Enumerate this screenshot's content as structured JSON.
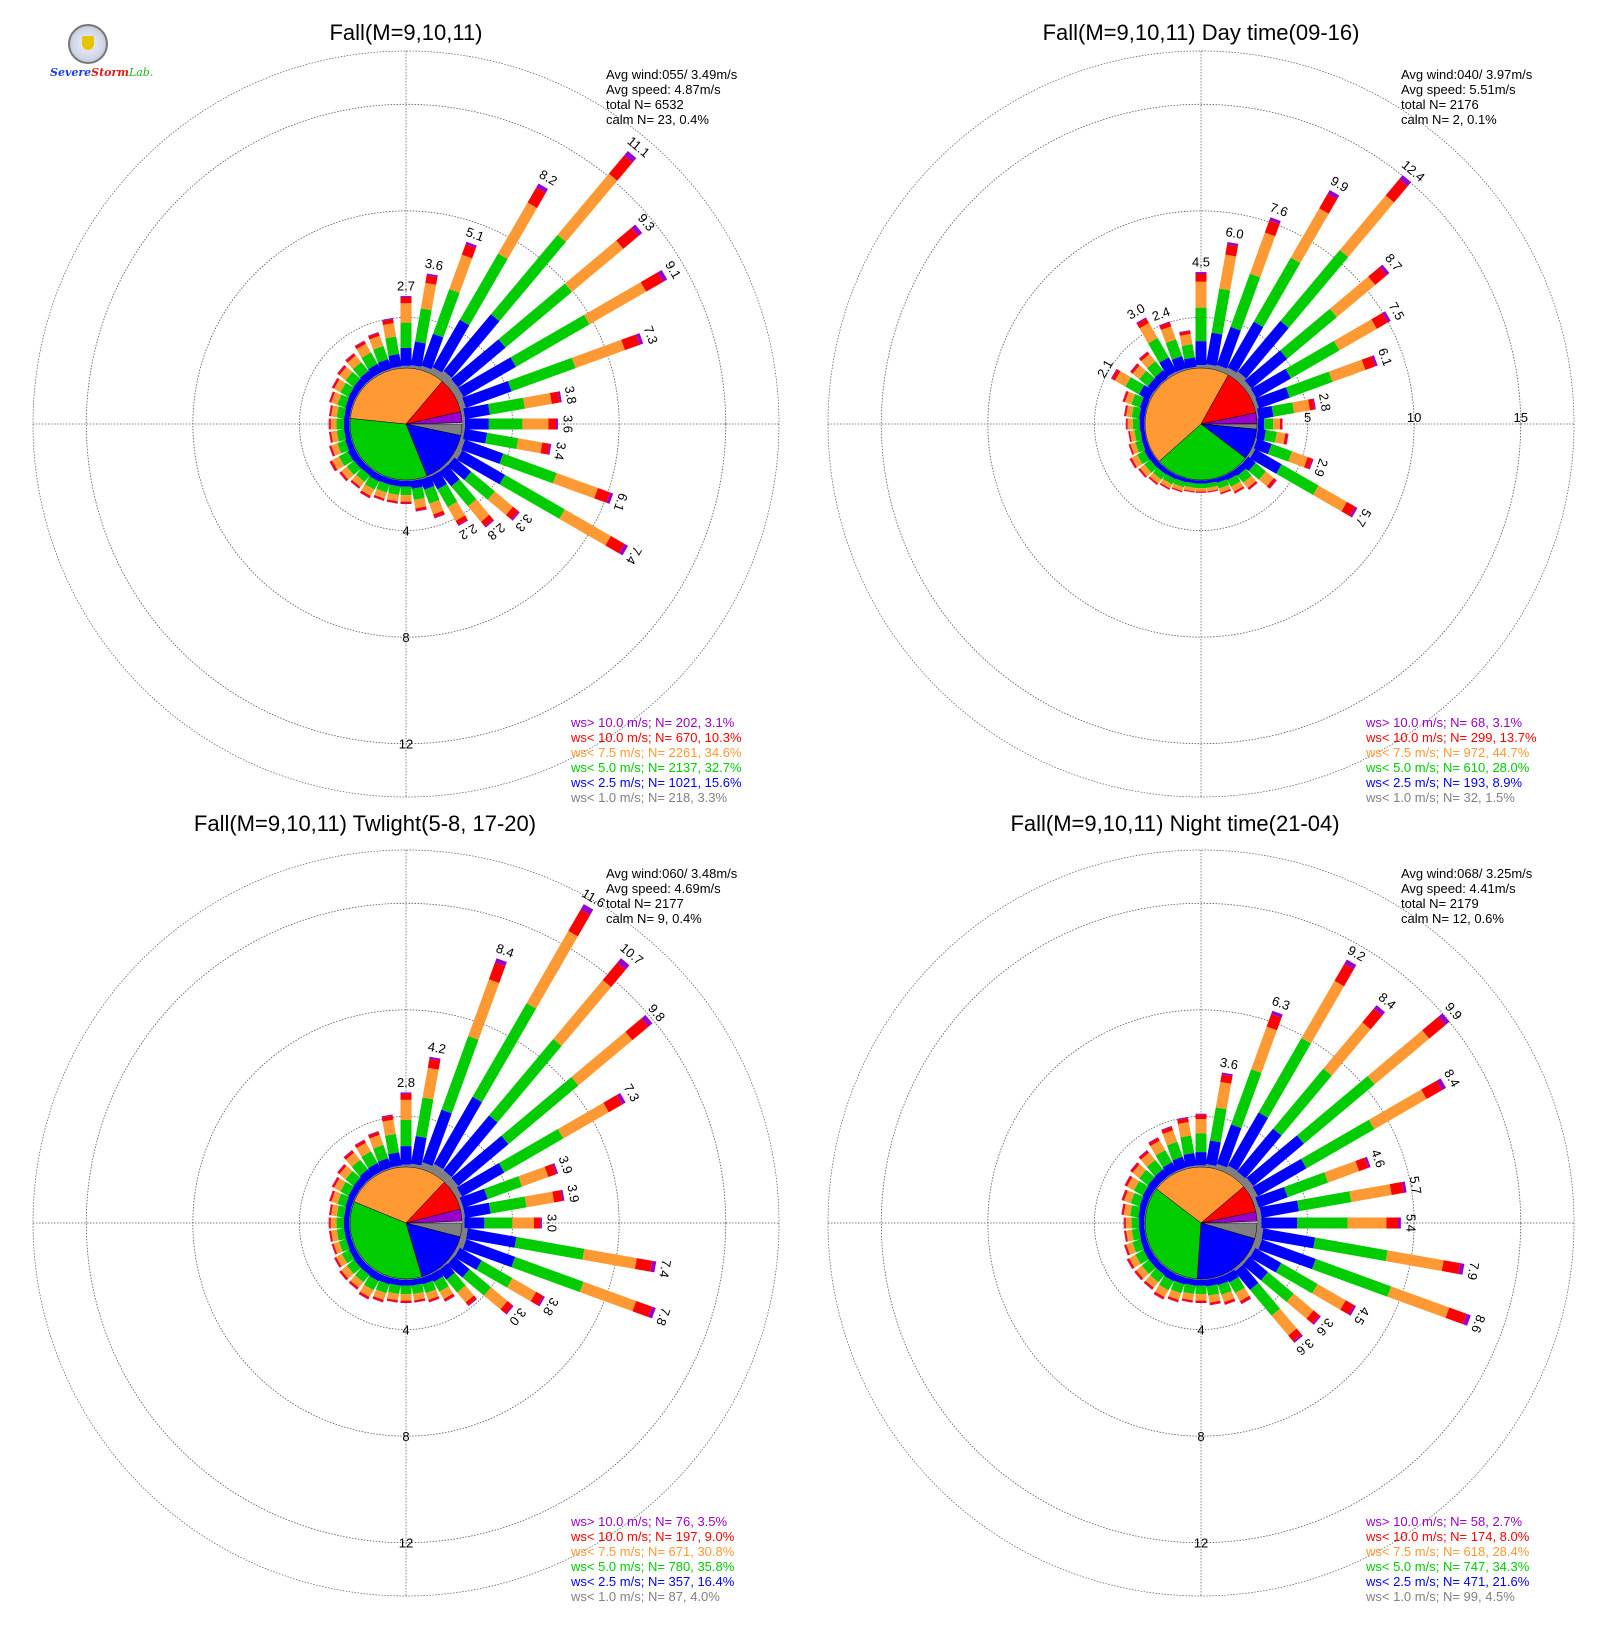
{
  "logo": {
    "word1": "Severe",
    "word2": "Storm",
    "word3": "Lab."
  },
  "colors": {
    "gray": "#808080",
    "blue": "#0000ff",
    "green": "#00cc00",
    "orange": "#ff9933",
    "red": "#ff0000",
    "purple": "#9900cc"
  },
  "legend_labels": [
    "ws> 10.0 m/s; N=",
    "ws< 10.0 m/s; N=",
    "ws<  7.5 m/s; N=",
    "ws<  5.0 m/s; N=",
    "ws<  2.5 m/s; N=",
    "ws<  1.0 m/s; N="
  ],
  "chart_data": [
    {
      "type": "windrose",
      "title": "Fall(M=9,10,11)",
      "stats": [
        "Avg wind:055/ 3.49m/s",
        "Avg speed: 4.87m/s",
        "total N=      6532",
        "calm N=     23,   0.4%"
      ],
      "rings": [
        4,
        8,
        12
      ],
      "ring_labels": [
        "4",
        "8",
        "12"
      ],
      "ring_label_side": "bottom",
      "rmax": 14,
      "pie_percent": [
        3.3,
        15.6,
        32.7,
        34.6,
        10.3,
        3.1
      ],
      "legend_values": [
        "  202,  3.1%",
        "  670, 10.3%",
        " 2261, 34.6%",
        " 2137, 32.7%",
        " 1021, 15.6%",
        "  218,  3.3%"
      ],
      "directions": [
        0,
        10,
        20,
        30,
        40,
        50,
        60,
        70,
        80,
        90,
        100,
        110,
        120,
        130,
        140,
        150,
        160,
        170,
        180,
        190,
        200,
        210,
        220,
        230,
        240,
        250,
        260,
        270,
        280,
        290,
        300,
        310,
        320,
        330,
        340,
        350
      ],
      "totals": [
        2.7,
        3.6,
        5.1,
        8.2,
        11.1,
        9.3,
        9.1,
        7.3,
        3.8,
        3.6,
        3.4,
        6.1,
        7.4,
        3.3,
        2.8,
        2.2,
        1.6,
        1.2,
        0.9,
        0.9,
        0.9,
        1.0,
        0.9,
        1.0,
        1.1,
        0.9,
        0.8,
        0.8,
        0.8,
        0.9,
        1.0,
        1.1,
        1.2,
        1.4,
        1.5,
        1.9
      ],
      "labels": [
        "2.7",
        "3.6",
        "5.1",
        "8.2",
        "11.1",
        "9.3",
        "9.1",
        "7.3",
        "3.8",
        "3.6",
        "3.4",
        "6.1",
        "7.4",
        "3.3",
        "2.8",
        "2.2",
        "",
        "",
        "",
        "",
        "",
        "",
        "",
        "",
        "",
        "",
        "",
        "",
        "",
        "",
        "",
        "",
        "",
        "",
        "",
        ""
      ]
    },
    {
      "type": "windrose",
      "title": "Fall(M=9,10,11) Day time(09-16)",
      "stats": [
        "Avg wind:040/ 3.97m/s",
        "Avg speed: 5.51m/s",
        "total N=      2176",
        "calm N=       2,   0.1%"
      ],
      "rings": [
        5,
        10,
        15
      ],
      "ring_labels": [
        "5",
        "10",
        "15"
      ],
      "ring_label_side": "right",
      "rmax": 17.5,
      "pie_percent": [
        1.5,
        8.9,
        28.0,
        44.7,
        13.7,
        3.1
      ],
      "legend_values": [
        "   68,  3.1%",
        "  299, 13.7%",
        "  972, 44.7%",
        "  610, 28.0%",
        "  193,  8.9%",
        "   32,  1.5%"
      ],
      "directions": [
        0,
        10,
        20,
        30,
        40,
        50,
        60,
        70,
        80,
        90,
        100,
        110,
        120,
        130,
        140,
        150,
        160,
        170,
        180,
        190,
        200,
        210,
        220,
        230,
        240,
        250,
        260,
        270,
        280,
        290,
        300,
        310,
        320,
        330,
        340,
        350
      ],
      "totals": [
        4.5,
        6.0,
        7.6,
        9.9,
        12.4,
        8.7,
        7.5,
        6.1,
        2.8,
        1.2,
        1.5,
        2.9,
        5.7,
        1.8,
        1.2,
        1.0,
        0.8,
        0.6,
        0.6,
        0.6,
        0.7,
        0.8,
        0.9,
        1.0,
        1.1,
        0.9,
        0.8,
        0.9,
        1.0,
        1.2,
        2.1,
        1.5,
        1.6,
        3.0,
        2.4,
        1.8
      ],
      "labels": [
        "4.5",
        "6.0",
        "7.6",
        "9.9",
        "12.4",
        "8.7",
        "7.5",
        "6.1",
        "2.8",
        "",
        "",
        "2.9",
        "5.7",
        "",
        "",
        "",
        "",
        "",
        "",
        "",
        "",
        "",
        "",
        "",
        "",
        "",
        "",
        "",
        "",
        "",
        "2.1",
        "",
        "",
        "3.0",
        "2.4",
        ""
      ]
    },
    {
      "type": "windrose",
      "title": "Fall(M=9,10,11) Twlight(5-8, 17-20)",
      "stats": [
        "Avg wind:060/ 3.48m/s",
        "Avg speed: 4.69m/s",
        "total N=      2177",
        "calm N=      9,   0.4%"
      ],
      "rings": [
        4,
        8,
        12
      ],
      "ring_labels": [
        "4",
        "8",
        "12"
      ],
      "ring_label_side": "bottom",
      "rmax": 14,
      "pie_percent": [
        4.0,
        16.4,
        35.8,
        30.8,
        9.0,
        3.5
      ],
      "legend_values": [
        "   76,  3.5%",
        "  197,  9.0%",
        "  671, 30.8%",
        "  780, 35.8%",
        "  357, 16.4%",
        "   87,  4.0%"
      ],
      "directions": [
        0,
        10,
        20,
        30,
        40,
        50,
        60,
        70,
        80,
        90,
        100,
        110,
        120,
        130,
        140,
        150,
        160,
        170,
        180,
        190,
        200,
        210,
        220,
        230,
        240,
        250,
        260,
        270,
        280,
        290,
        300,
        310,
        320,
        330,
        340,
        350
      ],
      "totals": [
        2.8,
        4.2,
        8.4,
        11.6,
        10.7,
        9.8,
        7.3,
        3.9,
        3.9,
        3.0,
        7.4,
        7.8,
        3.8,
        3.0,
        1.8,
        1.2,
        1.0,
        0.9,
        0.9,
        0.9,
        1.0,
        1.1,
        1.0,
        1.0,
        0.9,
        0.8,
        0.8,
        0.8,
        0.8,
        0.9,
        1.0,
        1.1,
        1.3,
        1.4,
        1.5,
        2.0
      ],
      "labels": [
        "2.8",
        "4.2",
        "8.4",
        "11.6",
        "10.7",
        "9.8",
        "7.3",
        "3.9",
        "3.9",
        "3.0",
        "7.4",
        "7.8",
        "3.8",
        "3.0",
        "",
        "",
        "",
        "",
        "",
        "",
        "",
        "",
        "",
        "",
        "",
        "",
        "",
        "",
        "",
        "",
        "",
        "",
        "",
        "",
        "",
        ""
      ]
    },
    {
      "type": "windrose",
      "title": "Fall(M=9,10,11) Night time(21-04)",
      "stats": [
        "Avg wind:068/ 3.25m/s",
        "Avg speed: 4.41m/s",
        "total N=      2179",
        "calm N=    12,   0.6%"
      ],
      "rings": [
        4,
        8,
        12
      ],
      "ring_labels": [
        "4",
        "8",
        "12"
      ],
      "ring_label_side": "bottom",
      "rmax": 14,
      "pie_percent": [
        4.5,
        21.6,
        34.3,
        28.4,
        8.0,
        2.7
      ],
      "legend_values": [
        "   58,  2.7%",
        "  174,  8.0%",
        "  618, 28.4%",
        "  747, 34.3%",
        "  471, 21.6%",
        "   99,  4.5%"
      ],
      "directions": [
        0,
        10,
        20,
        30,
        40,
        50,
        60,
        70,
        80,
        90,
        100,
        110,
        120,
        130,
        140,
        150,
        160,
        170,
        180,
        190,
        200,
        210,
        220,
        230,
        240,
        250,
        260,
        270,
        280,
        290,
        300,
        310,
        320,
        330,
        340,
        350
      ],
      "totals": [
        2.0,
        3.6,
        6.3,
        9.2,
        8.4,
        9.9,
        8.4,
        4.6,
        5.7,
        5.4,
        7.9,
        8.6,
        4.5,
        3.6,
        3.6,
        1.3,
        1.1,
        1.0,
        0.9,
        0.9,
        1.0,
        1.1,
        1.0,
        1.0,
        1.0,
        0.9,
        0.8,
        0.8,
        0.9,
        1.0,
        1.1,
        1.2,
        1.3,
        1.5,
        1.7,
        1.9
      ],
      "labels": [
        "",
        "3.6",
        "6.3",
        "9.2",
        "8.4",
        "9.9",
        "8.4",
        "4.6",
        "5.7",
        "5.4",
        "7.9",
        "8.6",
        "4.5",
        "3.6",
        "3.6",
        "",
        "",
        "",
        "",
        "",
        "",
        "",
        "",
        "",
        "",
        "",
        "",
        "",
        "",
        "",
        "",
        "",
        "",
        "",
        "",
        ""
      ]
    }
  ]
}
